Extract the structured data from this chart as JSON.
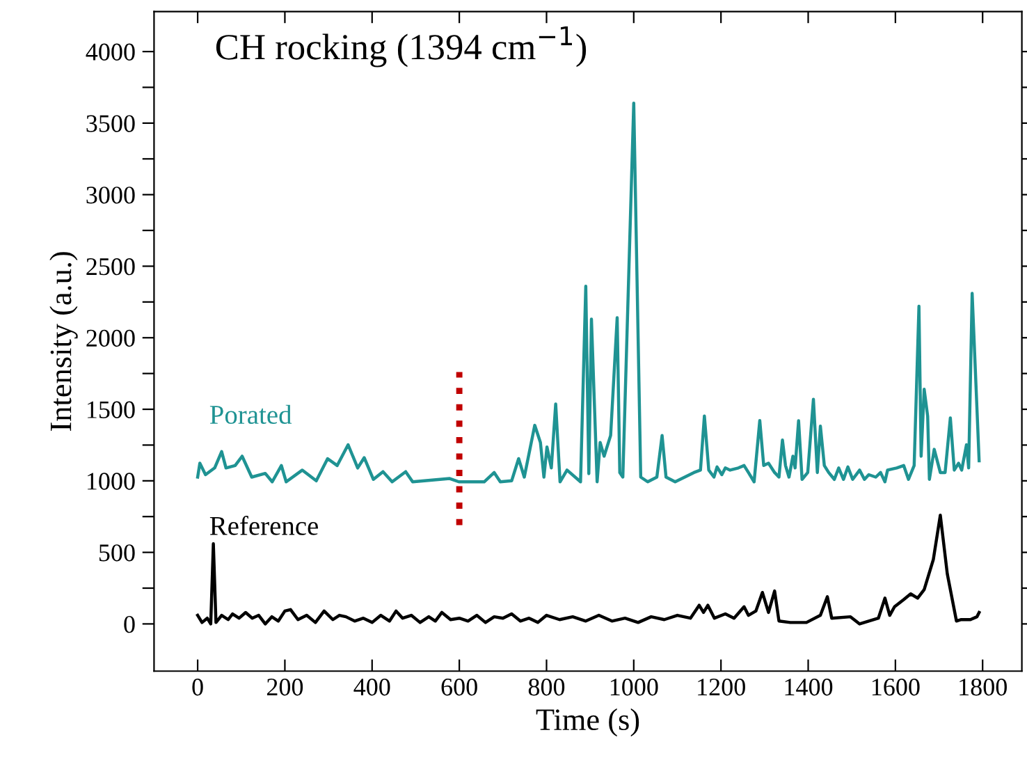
{
  "chart_data": {
    "type": "line",
    "title": "CH rocking (1394 cm$^{−1}$)",
    "xlabel": "Time (s)",
    "ylabel": "Intensity (a.u.)",
    "xlim": [
      -100,
      1890
    ],
    "ylim": [
      -330,
      4280
    ],
    "xticks": [
      0,
      200,
      400,
      600,
      800,
      1000,
      1200,
      1400,
      1600,
      1800
    ],
    "yticks": [
      0,
      {
        "value": 250,
        "label": null
      },
      500,
      {
        "value": 750,
        "label": null
      },
      1000,
      {
        "value": 1250,
        "label": null
      },
      1500,
      {
        "value": 1750,
        "label": null
      },
      2000,
      {
        "value": 2250,
        "label": null
      },
      2500,
      {
        "value": 2750,
        "label": null
      },
      3000,
      {
        "value": 3250,
        "label": null
      },
      3500,
      {
        "value": 3750,
        "label": null
      },
      4000
    ],
    "grid": false,
    "legend": false,
    "marker": "none",
    "line_style": "solid",
    "series": [
      {
        "name": "Porated",
        "color": "#1f9393",
        "x": [
          0,
          5,
          18,
          39,
          55,
          65,
          86,
          102,
          124,
          155,
          171,
          192,
          203,
          240,
          272,
          298,
          320,
          345,
          367,
          382,
          403,
          425,
          446,
          477,
          493,
          578,
          599,
          657,
          680,
          694,
          720,
          736,
          749,
          773,
          786,
          794,
          801,
          811,
          821,
          831,
          847,
          878,
          890,
          897,
          903,
          916,
          923,
          932,
          947,
          962,
          968,
          975,
          1000,
          1016,
          1032,
          1053,
          1065,
          1074,
          1095,
          1138,
          1153,
          1162,
          1172,
          1184,
          1191,
          1202,
          1210,
          1221,
          1240,
          1253,
          1263,
          1276,
          1289,
          1298,
          1309,
          1323,
          1333,
          1341,
          1348,
          1356,
          1365,
          1370,
          1378,
          1386,
          1399,
          1412,
          1421,
          1428,
          1437,
          1447,
          1460,
          1470,
          1481,
          1491,
          1502,
          1518,
          1529,
          1539,
          1555,
          1566,
          1576,
          1582,
          1603,
          1619,
          1630,
          1643,
          1654,
          1659,
          1666,
          1674,
          1678,
          1689,
          1703,
          1714,
          1726,
          1735,
          1745,
          1752,
          1763,
          1768,
          1776,
          1792
        ],
        "values": [
          1026,
          1123,
          1043,
          1090,
          1204,
          1090,
          1107,
          1172,
          1026,
          1052,
          993,
          1107,
          993,
          1075,
          1000,
          1155,
          1107,
          1252,
          1090,
          1162,
          1010,
          1064,
          993,
          1064,
          993,
          1016,
          993,
          993,
          1058,
          993,
          1000,
          1155,
          1026,
          1388,
          1268,
          1026,
          1236,
          1090,
          1537,
          993,
          1075,
          993,
          2360,
          1050,
          2130,
          993,
          1268,
          1172,
          1317,
          2140,
          1058,
          1026,
          3640,
          1026,
          993,
          1026,
          1317,
          1026,
          993,
          1058,
          1075,
          1453,
          1075,
          1026,
          1097,
          1043,
          1090,
          1075,
          1090,
          1107,
          1058,
          993,
          1421,
          1107,
          1123,
          1058,
          1026,
          1285,
          1107,
          1026,
          1172,
          1090,
          1420,
          1010,
          1058,
          1570,
          1058,
          1382,
          1107,
          1058,
          1010,
          1090,
          1010,
          1097,
          1010,
          1075,
          1010,
          1043,
          1026,
          1058,
          993,
          1075,
          1090,
          1107,
          1010,
          1107,
          2220,
          1172,
          1640,
          1450,
          1010,
          1220,
          1058,
          1058,
          1440,
          1075,
          1123,
          1075,
          1252,
          1090,
          2310,
          1140
        ]
      },
      {
        "name": "Reference",
        "color": "#000000",
        "x": [
          0,
          10,
          22,
          30,
          36,
          42,
          55,
          70,
          80,
          95,
          110,
          125,
          140,
          155,
          170,
          185,
          200,
          213,
          230,
          250,
          270,
          290,
          310,
          325,
          340,
          360,
          380,
          400,
          420,
          440,
          455,
          470,
          490,
          510,
          530,
          545,
          560,
          580,
          600,
          620,
          640,
          660,
          680,
          700,
          720,
          740,
          760,
          780,
          800,
          830,
          860,
          890,
          920,
          950,
          980,
          1010,
          1040,
          1070,
          1100,
          1130,
          1150,
          1160,
          1170,
          1185,
          1210,
          1230,
          1253,
          1263,
          1280,
          1295,
          1309,
          1323,
          1333,
          1359,
          1396,
          1428,
          1444,
          1454,
          1497,
          1518,
          1561,
          1576,
          1587,
          1598,
          1619,
          1635,
          1651,
          1666,
          1687,
          1703,
          1719,
          1740,
          1751,
          1772,
          1787,
          1792
        ],
        "values": [
          60,
          10,
          40,
          0,
          560,
          10,
          60,
          30,
          70,
          40,
          80,
          40,
          60,
          0,
          50,
          20,
          90,
          100,
          30,
          60,
          10,
          90,
          30,
          60,
          50,
          20,
          40,
          10,
          60,
          20,
          90,
          40,
          60,
          10,
          50,
          20,
          80,
          30,
          40,
          20,
          60,
          10,
          50,
          40,
          70,
          20,
          40,
          10,
          60,
          30,
          50,
          20,
          60,
          20,
          40,
          10,
          50,
          30,
          60,
          40,
          130,
          80,
          130,
          40,
          70,
          40,
          120,
          60,
          90,
          220,
          80,
          230,
          20,
          10,
          10,
          60,
          190,
          40,
          50,
          0,
          40,
          180,
          60,
          120,
          170,
          210,
          180,
          240,
          450,
          760,
          350,
          20,
          30,
          30,
          50,
          80
        ]
      },
      {
        "type": "line",
        "color": "#c00000",
        "line_style": "dotted",
        "x": [
          600,
          600
        ],
        "values": [
          690,
          1760
        ]
      }
    ]
  }
}
